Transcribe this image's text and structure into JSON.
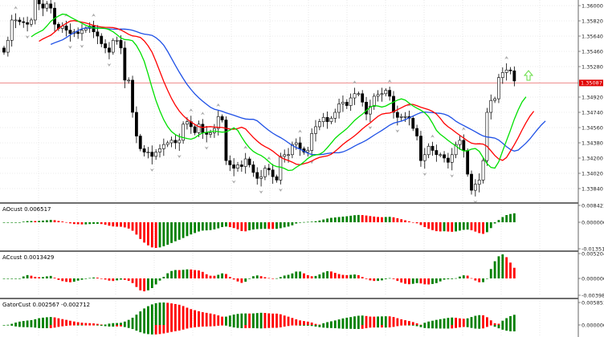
{
  "chart_data": {
    "type": "candlestick",
    "price_axis": {
      "ticks": [
        "1.36000",
        "1.35820",
        "1.35640",
        "1.35460",
        "1.35280",
        "1.34920",
        "1.34740",
        "1.34560",
        "1.34380",
        "1.34200",
        "1.34020",
        "1.33840"
      ],
      "tick_values": [
        1.36,
        1.3582,
        1.3564,
        1.3546,
        1.3528,
        1.3492,
        1.3474,
        1.3456,
        1.3438,
        1.342,
        1.3402,
        1.3384
      ],
      "current_price_label": "1.35087",
      "current_price": 1.35087,
      "current_price_color": "#e00000"
    },
    "closes": [
      1.3545,
      1.3559,
      1.3583,
      1.3583,
      1.3581,
      1.358,
      1.3578,
      1.3583,
      1.3607,
      1.3602,
      1.3597,
      1.3602,
      1.3597,
      1.3578,
      1.3573,
      1.3576,
      1.3571,
      1.3567,
      1.3569,
      1.3567,
      1.3571,
      1.3573,
      1.3576,
      1.3569,
      1.3564,
      1.3555,
      1.355,
      1.3545,
      1.3559,
      1.3559,
      1.355,
      1.3512,
      1.3512,
      1.3474,
      1.3446,
      1.3431,
      1.3427,
      1.3427,
      1.3422,
      1.3427,
      1.3431,
      1.3436,
      1.3438,
      1.3441,
      1.3438,
      1.3441,
      1.346,
      1.3463,
      1.3457,
      1.345,
      1.346,
      1.345,
      1.3448,
      1.345,
      1.3455,
      1.3469,
      1.3465,
      1.3417,
      1.3412,
      1.3408,
      1.3412,
      1.341,
      1.3419,
      1.3412,
      1.3403,
      1.3396,
      1.3398,
      1.3408,
      1.3406,
      1.3398,
      1.3394,
      1.3422,
      1.3424,
      1.3424,
      1.3436,
      1.3438,
      1.3431,
      1.3427,
      1.3429,
      1.3449,
      1.3457,
      1.3463,
      1.3468,
      1.3463,
      1.3467,
      1.3474,
      1.3484,
      1.3486,
      1.3482,
      1.3491,
      1.3496,
      1.3496,
      1.3486,
      1.3472,
      1.3481,
      1.3493,
      1.3495,
      1.3496,
      1.35,
      1.3493,
      1.3474,
      1.3468,
      1.3469,
      1.3469,
      1.3467,
      1.3455,
      1.3446,
      1.3417,
      1.3424,
      1.3434,
      1.3429,
      1.3424,
      1.3424,
      1.342,
      1.3415,
      1.3424,
      1.3436,
      1.3441,
      1.3429,
      1.3401,
      1.3382,
      1.3389,
      1.3394,
      1.3417,
      1.3474,
      1.3488,
      1.349,
      1.3515,
      1.3521,
      1.3524,
      1.3523,
      1.3511
    ],
    "indicators": {
      "lips_color": "#00e000",
      "teeth_color": "#ff0000",
      "jaw_color": "#1e50e6",
      "signal_arrow": "up-arrow-outline",
      "signal_arrow_color": "#66dd44"
    },
    "panels": [
      {
        "title": "AOcust 0.006517",
        "ticks": [
          "0.008421",
          "0.000000",
          "-0.013513"
        ],
        "up_color": "#008000",
        "down_color": "#ff0000"
      },
      {
        "title": "ACcust 0.0013429",
        "ticks": [
          "0.0052047",
          "0.0000000",
          "-0.0039888"
        ],
        "up_color": "#008000",
        "down_color": "#ff0000"
      },
      {
        "title": "GatorCust 0.002567 -0.002712",
        "ticks": [
          "0.005851",
          "0.000000"
        ],
        "up_color": "#008000",
        "down_color": "#ff0000"
      }
    ]
  }
}
